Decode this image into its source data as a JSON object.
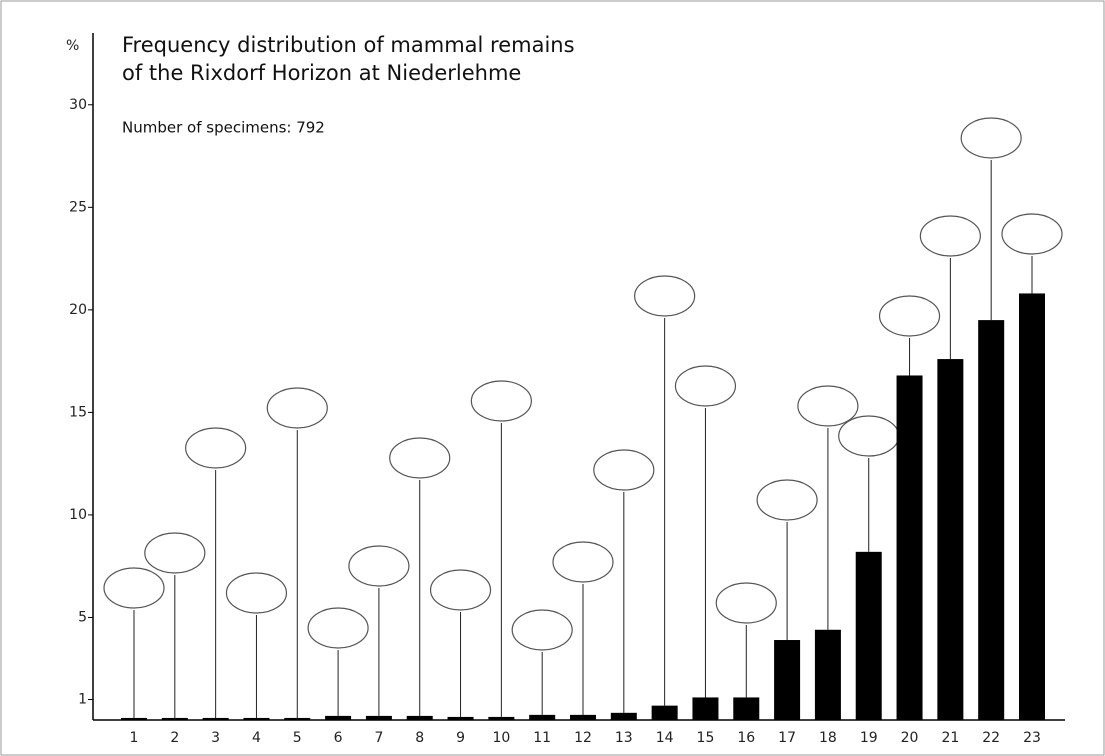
{
  "chart_data": {
    "type": "bar",
    "title": [
      "Frequency distribution of mammal remains",
      "of the Rixdorf Horizon at Niederlehme"
    ],
    "subtitle": "Number of specimens: 792",
    "y_label": "%",
    "categories": [
      "1",
      "2",
      "3",
      "4",
      "5",
      "6",
      "7",
      "8",
      "9",
      "10",
      "11",
      "12",
      "13",
      "14",
      "15",
      "16",
      "17",
      "18",
      "19",
      "20",
      "21",
      "22",
      "23"
    ],
    "values": [
      0.1,
      0.1,
      0.1,
      0.1,
      0.1,
      0.2,
      0.2,
      0.2,
      0.15,
      0.15,
      0.25,
      0.25,
      0.35,
      0.7,
      1.1,
      1.1,
      3.9,
      4.4,
      8.2,
      16.8,
      17.6,
      19.5,
      20.8
    ],
    "color": "#000000",
    "ylim": [
      0,
      33.5
    ],
    "yticks": [
      1,
      5,
      10,
      15,
      20,
      25,
      30
    ],
    "grid": false
  }
}
